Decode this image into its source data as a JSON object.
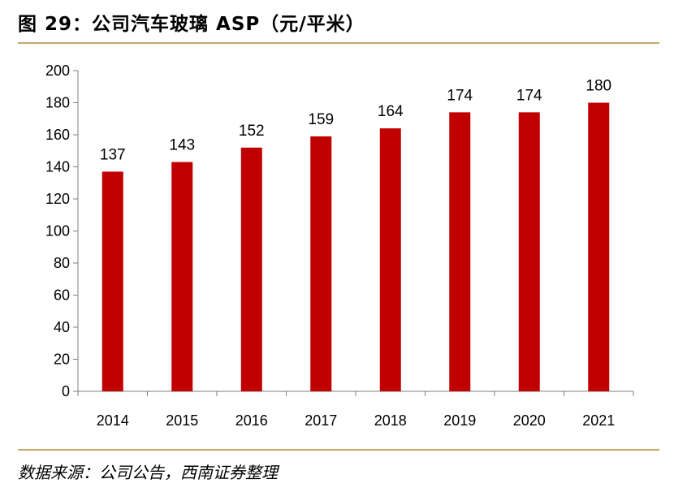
{
  "title": "图 29：公司汽车玻璃 ASP（元/平米）",
  "source": "数据来源：公司公告，西南证券整理",
  "colors": {
    "bar": "#c00000",
    "rule": "#c8a86a",
    "axis": "#7f7f7f"
  },
  "chart_data": {
    "type": "bar",
    "title": "公司汽车玻璃 ASP（元/平米）",
    "xlabel": "",
    "ylabel": "",
    "categories": [
      "2014",
      "2015",
      "2016",
      "2017",
      "2018",
      "2019",
      "2020",
      "2021"
    ],
    "values": [
      137,
      143,
      152,
      159,
      164,
      174,
      174,
      180
    ],
    "ylim": [
      0,
      200
    ],
    "yticks": [
      0,
      20,
      40,
      60,
      80,
      100,
      120,
      140,
      160,
      180,
      200
    ],
    "grid": false,
    "legend": "none",
    "data_labels": [
      "137",
      "143",
      "152",
      "159",
      "164",
      "174",
      "174",
      "180"
    ]
  }
}
